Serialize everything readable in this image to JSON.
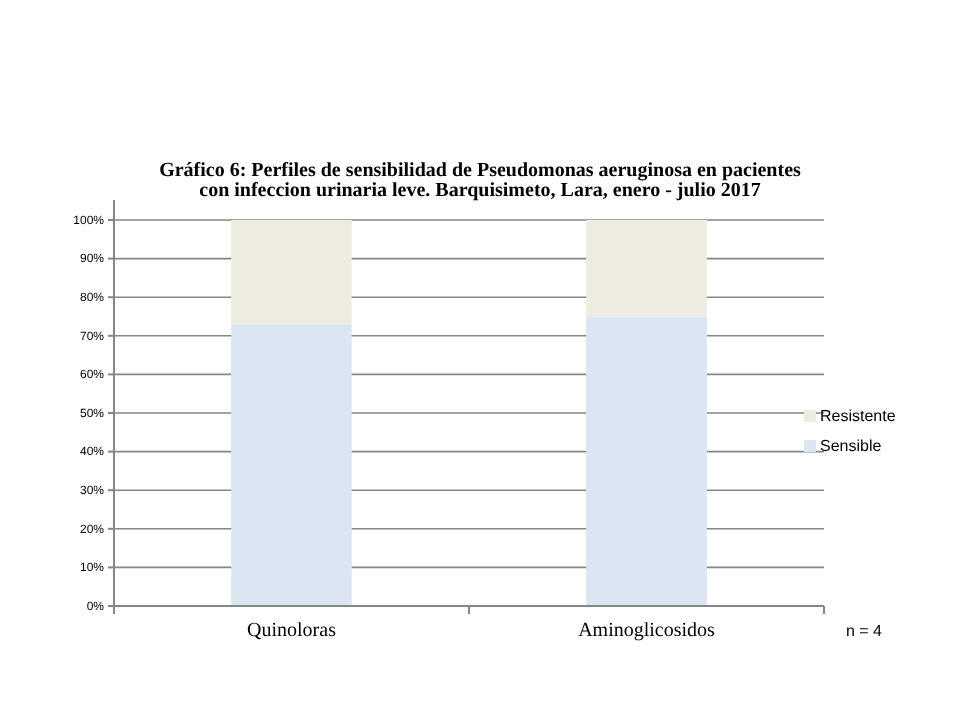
{
  "chart_data": {
    "type": "bar",
    "stacked": true,
    "title": "Gráfico 6: Perfiles de sensibilidad de Pseudomonas aeruginosa en pacientes con infeccion  urinaria leve. Barquisimeto, Lara,  enero - julio 2017",
    "categories": [
      "Quinoloras",
      "Aminoglicosidos"
    ],
    "series": [
      {
        "name": "Sensible",
        "color": "#dce6f2",
        "values": [
          73,
          75
        ]
      },
      {
        "name": "Resistente",
        "color": "#eeece1",
        "values": [
          27,
          25
        ]
      }
    ],
    "ylim": [
      0,
      100
    ],
    "yticks": [
      {
        "value": 0,
        "label": "0%"
      },
      {
        "value": 10,
        "label": "10%"
      },
      {
        "value": 20,
        "label": "20%"
      },
      {
        "value": 30,
        "label": "30%"
      },
      {
        "value": 40,
        "label": "40%"
      },
      {
        "value": 50,
        "label": "50%"
      },
      {
        "value": 60,
        "label": "60%"
      },
      {
        "value": 70,
        "label": "70%"
      },
      {
        "value": 80,
        "label": "80%"
      },
      {
        "value": 90,
        "label": "90%"
      },
      {
        "value": 100,
        "label": "100%"
      }
    ],
    "grid": "y",
    "legend": "right",
    "annotations": [
      "n = 4"
    ]
  }
}
